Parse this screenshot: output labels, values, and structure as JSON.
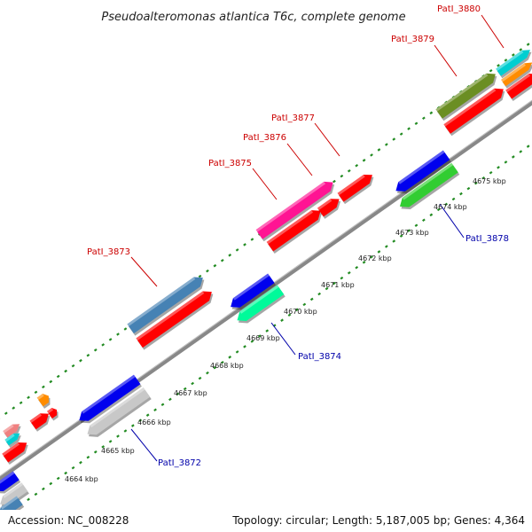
{
  "title": "Pseudoalteromonas atlantica T6c, complete genome",
  "footer": {
    "accession": "Accession: NC_008228",
    "stats": "Topology: circular; Length: 5,187,005 bp; Genes: 4,364"
  },
  "kbp_labels": [
    "4664 kbp",
    "4665 kbp",
    "4666 kbp",
    "4667 kbp",
    "4668 kbp",
    "4669 kbp",
    "4670 kbp",
    "4671 kbp",
    "4672 kbp",
    "4673 kbp",
    "4674 kbp",
    "4675 kbp"
  ],
  "gene_labels": {
    "g3873": "PatI_3873",
    "g3875": "PatI_3875",
    "g3876": "PatI_3876",
    "g3877": "PatI_3877",
    "g3879": "PatI_3879",
    "g3880": "PatI_3880",
    "g3872": "PatI_3872",
    "g3874": "PatI_3874",
    "g3878": "PatI_3878"
  },
  "colors": {
    "forward_label": "#cc0000",
    "reverse_label": "#0000aa",
    "backbone": "#888888",
    "ticks": "#228b22",
    "cds_red": "#ff0000",
    "blue": "#0000ee",
    "steelblue": "#4682b4",
    "magenta": "#ff1493",
    "olive": "#6b8e23",
    "cyan": "#00ced1",
    "orange": "#ff8c00",
    "lime": "#32cd32",
    "aquamarine": "#00fa9a",
    "lightgray": "#c8c8c8",
    "pink": "#f08080"
  }
}
